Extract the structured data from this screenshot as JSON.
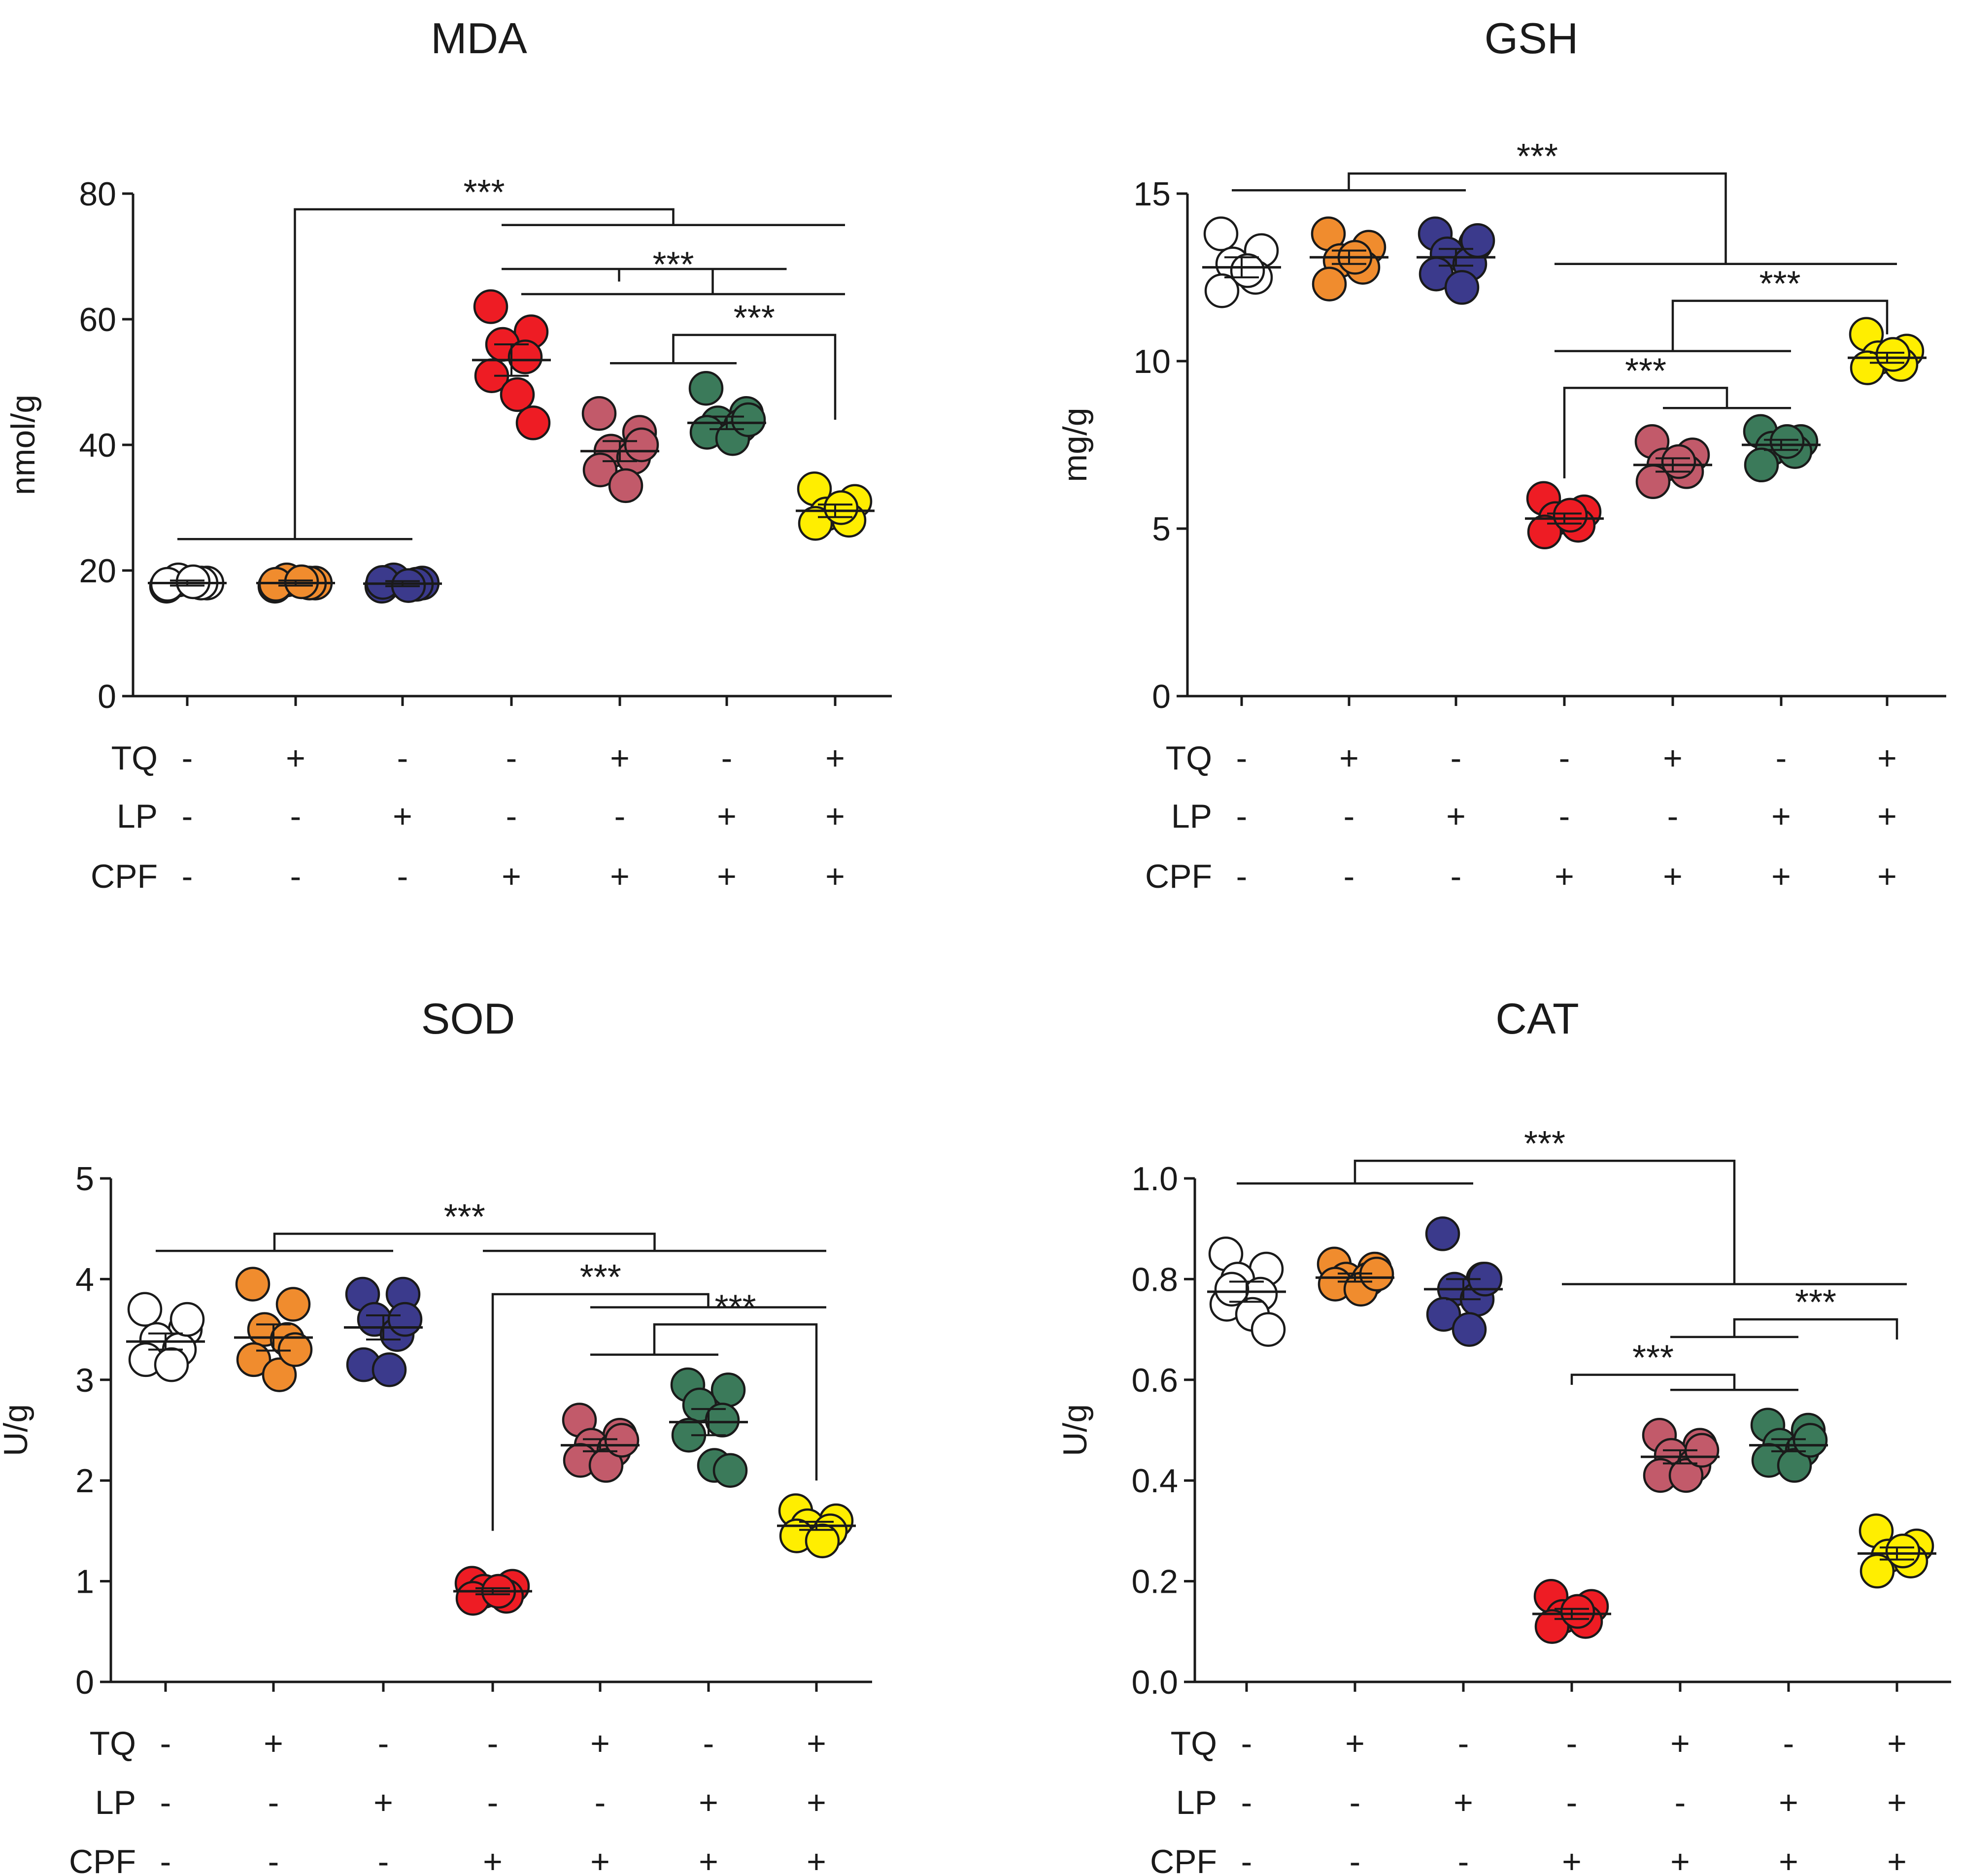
{
  "row_labels": [
    "TQ",
    "LP",
    "CPF"
  ],
  "group_design": {
    "TQ": [
      "-",
      "+",
      "-",
      "-",
      "+",
      "-",
      "+"
    ],
    "LP": [
      "-",
      "-",
      "+",
      "-",
      "-",
      "+",
      "+"
    ],
    "CPF": [
      "-",
      "-",
      "-",
      "+",
      "+",
      "+",
      "+"
    ]
  },
  "group_colors": [
    "#ffffff",
    "#f08c2e",
    "#3b3a8c",
    "#ee1c24",
    "#c25a6a",
    "#3b7a5a",
    "#ffee00"
  ],
  "chart_data": [
    {
      "type": "scatter",
      "title": "MDA",
      "ylabel": "nmol/g",
      "ylim": [
        0,
        80
      ],
      "yticks": [
        "0",
        "20",
        "40",
        "60",
        "80"
      ],
      "significance": "***",
      "groups": [
        {
          "points": [
            17.5,
            18,
            18.5,
            18,
            17.8,
            18.2
          ],
          "mean": 18,
          "sem": 0.4
        },
        {
          "points": [
            17.5,
            18,
            18.5,
            18,
            17.8,
            18.2
          ],
          "mean": 18,
          "sem": 0.4
        },
        {
          "points": [
            17.5,
            18,
            18.5,
            17.8,
            18.1,
            17.6
          ],
          "mean": 17.9,
          "sem": 0.4
        },
        {
          "points": [
            62,
            58,
            56,
            54,
            51,
            48,
            43.5
          ],
          "mean": 53.5,
          "sem": 2.5
        },
        {
          "points": [
            45,
            42,
            39,
            38,
            36,
            33.5,
            40
          ],
          "mean": 39,
          "sem": 1.6
        },
        {
          "points": [
            49,
            45,
            43.5,
            43,
            42,
            41,
            44
          ],
          "mean": 43.5,
          "sem": 1
        },
        {
          "points": [
            33,
            31,
            29,
            28,
            27.5,
            30
          ],
          "mean": 29.5,
          "sem": 1
        }
      ]
    },
    {
      "type": "scatter",
      "title": "GSH",
      "ylabel": "mg/g",
      "ylim": [
        0,
        15
      ],
      "yticks": [
        "0",
        "5",
        "10",
        "15"
      ],
      "significance": "***",
      "groups": [
        {
          "points": [
            13.8,
            13.3,
            12.9,
            12.5,
            12.1,
            12.7
          ],
          "mean": 12.8,
          "sem": 0.3
        },
        {
          "points": [
            13.8,
            13.4,
            13,
            12.8,
            12.3,
            13.1
          ],
          "mean": 13.1,
          "sem": 0.2
        },
        {
          "points": [
            13.8,
            13.5,
            13.2,
            12.9,
            12.6,
            12.2,
            13.6
          ],
          "mean": 13.1,
          "sem": 0.25
        },
        {
          "points": [
            5.9,
            5.5,
            5.3,
            5.1,
            4.9,
            5.4
          ],
          "mean": 5.3,
          "sem": 0.15
        },
        {
          "points": [
            7.6,
            7.2,
            6.9,
            6.7,
            6.4,
            7
          ],
          "mean": 6.9,
          "sem": 0.2
        },
        {
          "points": [
            7.9,
            7.6,
            7.4,
            7.3,
            6.9,
            7.6
          ],
          "mean": 7.5,
          "sem": 0.15
        },
        {
          "points": [
            10.8,
            10.3,
            10.1,
            9.9,
            9.8,
            10.2
          ],
          "mean": 10.1,
          "sem": 0.15
        }
      ]
    },
    {
      "type": "scatter",
      "title": "SOD",
      "ylabel": "U/g",
      "ylim": [
        0,
        5
      ],
      "yticks": [
        "0",
        "1",
        "2",
        "3",
        "4",
        "5"
      ],
      "significance": "***",
      "groups": [
        {
          "points": [
            3.7,
            3.5,
            3.4,
            3.3,
            3.2,
            3.15,
            3.6
          ],
          "mean": 3.38,
          "sem": 0.08
        },
        {
          "points": [
            3.95,
            3.75,
            3.5,
            3.4,
            3.2,
            3.05,
            3.3
          ],
          "mean": 3.42,
          "sem": 0.13
        },
        {
          "points": [
            3.85,
            3.85,
            3.6,
            3.45,
            3.15,
            3.1,
            3.6
          ],
          "mean": 3.52,
          "sem": 0.12
        },
        {
          "points": [
            0.98,
            0.95,
            0.9,
            0.85,
            0.83,
            0.9
          ],
          "mean": 0.9,
          "sem": 0.03
        },
        {
          "points": [
            2.6,
            2.45,
            2.35,
            2.3,
            2.2,
            2.15,
            2.4
          ],
          "mean": 2.35,
          "sem": 0.06
        },
        {
          "points": [
            2.95,
            2.9,
            2.75,
            2.6,
            2.45,
            2.15,
            2.1
          ],
          "mean": 2.58,
          "sem": 0.13
        },
        {
          "points": [
            1.7,
            1.6,
            1.55,
            1.5,
            1.45,
            1.4
          ],
          "mean": 1.55,
          "sem": 0.04
        }
      ]
    },
    {
      "type": "scatter",
      "title": "CAT",
      "ylabel": "U/g",
      "ylim": [
        0,
        1
      ],
      "yticks": [
        "0.0",
        "0.2",
        "0.4",
        "0.6",
        "0.8",
        "1.0"
      ],
      "significance": "***",
      "groups": [
        {
          "points": [
            0.85,
            0.82,
            0.8,
            0.77,
            0.75,
            0.73,
            0.7,
            0.78
          ],
          "mean": 0.775,
          "sem": 0.02
        },
        {
          "points": [
            0.83,
            0.82,
            0.8,
            0.8,
            0.79,
            0.78,
            0.81
          ],
          "mean": 0.803,
          "sem": 0.008
        },
        {
          "points": [
            0.89,
            0.8,
            0.78,
            0.76,
            0.73,
            0.7,
            0.8
          ],
          "mean": 0.78,
          "sem": 0.02
        },
        {
          "points": [
            0.17,
            0.15,
            0.13,
            0.12,
            0.11,
            0.14
          ],
          "mean": 0.135,
          "sem": 0.01
        },
        {
          "points": [
            0.49,
            0.47,
            0.45,
            0.43,
            0.41,
            0.41,
            0.46
          ],
          "mean": 0.447,
          "sem": 0.013
        },
        {
          "points": [
            0.51,
            0.5,
            0.47,
            0.46,
            0.44,
            0.43,
            0.48
          ],
          "mean": 0.47,
          "sem": 0.012
        },
        {
          "points": [
            0.3,
            0.27,
            0.25,
            0.24,
            0.22,
            0.26
          ],
          "mean": 0.255,
          "sem": 0.012
        }
      ]
    }
  ]
}
